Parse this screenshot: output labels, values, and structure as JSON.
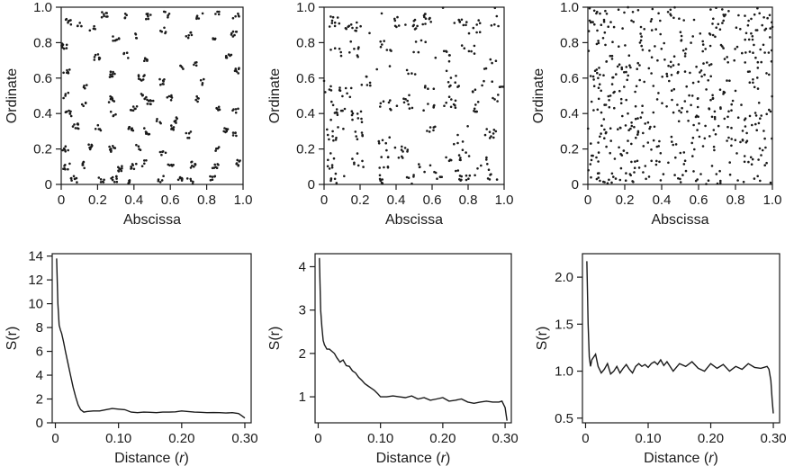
{
  "chart_data": [
    {
      "type": "scatter",
      "title": "",
      "xlabel": "Abscissa",
      "ylabel": "Ordinate",
      "xlim": [
        0,
        1
      ],
      "ylim": [
        0,
        1
      ],
      "xticks": [
        "0",
        "0.2",
        "0.4",
        "0.6",
        "0.8",
        "1.0"
      ],
      "yticks": [
        "0",
        "0.2",
        "0.4",
        "0.6",
        "0.8",
        "1.0"
      ],
      "pattern": "strongly clustered",
      "clusters": [
        [
          0.04,
          0.92
        ],
        [
          0.1,
          0.9
        ],
        [
          0.17,
          0.88
        ],
        [
          0.24,
          0.96
        ],
        [
          0.35,
          0.95
        ],
        [
          0.48,
          0.95
        ],
        [
          0.58,
          0.96
        ],
        [
          0.76,
          0.95
        ],
        [
          0.86,
          0.96
        ],
        [
          0.96,
          0.95
        ],
        [
          0.3,
          0.82
        ],
        [
          0.4,
          0.84
        ],
        [
          0.56,
          0.87
        ],
        [
          0.7,
          0.84
        ],
        [
          0.85,
          0.83
        ],
        [
          0.95,
          0.85
        ],
        [
          0.02,
          0.78
        ],
        [
          0.2,
          0.72
        ],
        [
          0.36,
          0.73
        ],
        [
          0.47,
          0.7
        ],
        [
          0.66,
          0.66
        ],
        [
          0.74,
          0.68
        ],
        [
          0.92,
          0.72
        ],
        [
          0.03,
          0.64
        ],
        [
          0.13,
          0.56
        ],
        [
          0.28,
          0.62
        ],
        [
          0.44,
          0.6
        ],
        [
          0.56,
          0.58
        ],
        [
          0.77,
          0.58
        ],
        [
          0.96,
          0.64
        ],
        [
          0.03,
          0.5
        ],
        [
          0.12,
          0.46
        ],
        [
          0.28,
          0.48
        ],
        [
          0.45,
          0.5
        ],
        [
          0.49,
          0.47
        ],
        [
          0.6,
          0.49
        ],
        [
          0.74,
          0.48
        ],
        [
          0.04,
          0.4
        ],
        [
          0.29,
          0.4
        ],
        [
          0.4,
          0.43
        ],
        [
          0.53,
          0.36
        ],
        [
          0.62,
          0.36
        ],
        [
          0.86,
          0.42
        ],
        [
          0.96,
          0.41
        ],
        [
          0.08,
          0.33
        ],
        [
          0.2,
          0.32
        ],
        [
          0.38,
          0.31
        ],
        [
          0.47,
          0.3
        ],
        [
          0.61,
          0.32
        ],
        [
          0.7,
          0.28
        ],
        [
          0.9,
          0.3
        ],
        [
          0.95,
          0.28
        ],
        [
          0.02,
          0.2
        ],
        [
          0.16,
          0.21
        ],
        [
          0.28,
          0.2
        ],
        [
          0.43,
          0.21
        ],
        [
          0.56,
          0.17
        ],
        [
          0.85,
          0.2
        ],
        [
          0.03,
          0.1
        ],
        [
          0.13,
          0.11
        ],
        [
          0.32,
          0.09
        ],
        [
          0.4,
          0.1
        ],
        [
          0.46,
          0.12
        ],
        [
          0.6,
          0.1
        ],
        [
          0.72,
          0.11
        ],
        [
          0.85,
          0.1
        ],
        [
          0.98,
          0.12
        ],
        [
          0.07,
          0.03
        ],
        [
          0.22,
          0.02
        ],
        [
          0.29,
          0.03
        ],
        [
          0.36,
          0.02
        ],
        [
          0.55,
          0.03
        ],
        [
          0.66,
          0.04
        ],
        [
          0.71,
          0.02
        ],
        [
          0.83,
          0.03
        ]
      ]
    },
    {
      "type": "scatter",
      "title": "",
      "xlabel": "Abscissa",
      "ylabel": "Ordinate",
      "xlim": [
        0,
        1
      ],
      "ylim": [
        0,
        1
      ],
      "xticks": [
        "0",
        "0.2",
        "0.4",
        "0.6",
        "0.8",
        "1.0"
      ],
      "yticks": [
        "0",
        "0.2",
        "0.4",
        "0.6",
        "0.8",
        "1.0"
      ],
      "pattern": "moderately clustered",
      "clusters": [
        [
          0.05,
          0.92
        ],
        [
          0.14,
          0.86
        ],
        [
          0.18,
          0.9
        ],
        [
          0.42,
          0.92
        ],
        [
          0.5,
          0.9
        ],
        [
          0.58,
          0.93
        ],
        [
          0.78,
          0.93
        ],
        [
          0.84,
          0.88
        ],
        [
          0.95,
          0.92
        ],
        [
          0.06,
          0.75
        ],
        [
          0.17,
          0.75
        ],
        [
          0.34,
          0.78
        ],
        [
          0.52,
          0.78
        ],
        [
          0.7,
          0.72
        ],
        [
          0.8,
          0.75
        ],
        [
          0.92,
          0.68
        ],
        [
          0.03,
          0.55
        ],
        [
          0.12,
          0.52
        ],
        [
          0.24,
          0.58
        ],
        [
          0.48,
          0.62
        ],
        [
          0.58,
          0.55
        ],
        [
          0.72,
          0.58
        ],
        [
          0.86,
          0.55
        ],
        [
          0.96,
          0.55
        ],
        [
          0.08,
          0.42
        ],
        [
          0.18,
          0.38
        ],
        [
          0.34,
          0.45
        ],
        [
          0.46,
          0.45
        ],
        [
          0.58,
          0.42
        ],
        [
          0.7,
          0.46
        ],
        [
          0.84,
          0.44
        ],
        [
          0.96,
          0.48
        ],
        [
          0.04,
          0.28
        ],
        [
          0.2,
          0.28
        ],
        [
          0.33,
          0.26
        ],
        [
          0.46,
          0.22
        ],
        [
          0.6,
          0.3
        ],
        [
          0.74,
          0.26
        ],
        [
          0.92,
          0.28
        ],
        [
          0.05,
          0.12
        ],
        [
          0.18,
          0.14
        ],
        [
          0.34,
          0.12
        ],
        [
          0.42,
          0.18
        ],
        [
          0.56,
          0.1
        ],
        [
          0.68,
          0.13
        ],
        [
          0.78,
          0.16
        ],
        [
          0.88,
          0.12
        ],
        [
          0.06,
          0.04
        ],
        [
          0.3,
          0.04
        ],
        [
          0.48,
          0.05
        ],
        [
          0.64,
          0.04
        ],
        [
          0.74,
          0.05
        ],
        [
          0.82,
          0.04
        ],
        [
          0.94,
          0.05
        ]
      ]
    },
    {
      "type": "scatter",
      "title": "",
      "xlabel": "Abscissa",
      "ylabel": "Ordinate",
      "xlim": [
        0,
        1
      ],
      "ylim": [
        0,
        1
      ],
      "xticks": [
        "0",
        "0.2",
        "0.4",
        "0.6",
        "0.8",
        "1.0"
      ],
      "yticks": [
        "0",
        "0.2",
        "0.4",
        "0.6",
        "0.8",
        "1.0"
      ],
      "pattern": "random (uniform)"
    },
    {
      "type": "line",
      "title": "",
      "xlabel": "Distance (r)",
      "ylabel": "S(r)",
      "xlim": [
        -0.005,
        0.31
      ],
      "ylim": [
        0,
        14.2
      ],
      "xticks": [
        "0",
        "0.10",
        "0.20",
        "0.30"
      ],
      "yticks": [
        "0",
        "2",
        "4",
        "6",
        "8",
        "10",
        "12",
        "14"
      ],
      "x": [
        0.002,
        0.004,
        0.006,
        0.008,
        0.01,
        0.013,
        0.016,
        0.02,
        0.024,
        0.028,
        0.032,
        0.036,
        0.04,
        0.045,
        0.05,
        0.06,
        0.07,
        0.08,
        0.09,
        0.1,
        0.11,
        0.12,
        0.13,
        0.14,
        0.15,
        0.16,
        0.17,
        0.18,
        0.19,
        0.2,
        0.21,
        0.22,
        0.23,
        0.24,
        0.25,
        0.26,
        0.27,
        0.28,
        0.29,
        0.295,
        0.3
      ],
      "y": [
        13.8,
        10.0,
        8.2,
        7.8,
        7.5,
        6.8,
        6.0,
        5.0,
        4.0,
        3.0,
        2.2,
        1.5,
        1.1,
        0.9,
        0.95,
        1.0,
        1.0,
        1.1,
        1.2,
        1.15,
        1.1,
        0.9,
        0.85,
        0.9,
        0.88,
        0.85,
        0.9,
        0.9,
        0.92,
        1.0,
        0.95,
        0.9,
        0.88,
        0.85,
        0.86,
        0.85,
        0.82,
        0.85,
        0.78,
        0.6,
        0.4
      ]
    },
    {
      "type": "line",
      "title": "",
      "xlabel": "Distance (r)",
      "ylabel": "S(r)",
      "xlim": [
        -0.005,
        0.31
      ],
      "ylim": [
        0.4,
        4.3
      ],
      "xticks": [
        "0",
        "0.10",
        "0.20",
        "0.30"
      ],
      "yticks": [
        "1",
        "2",
        "3",
        "4"
      ],
      "x": [
        0.002,
        0.004,
        0.006,
        0.008,
        0.01,
        0.014,
        0.018,
        0.022,
        0.026,
        0.03,
        0.035,
        0.04,
        0.045,
        0.05,
        0.055,
        0.06,
        0.065,
        0.07,
        0.075,
        0.08,
        0.085,
        0.09,
        0.095,
        0.1,
        0.11,
        0.12,
        0.13,
        0.14,
        0.15,
        0.16,
        0.17,
        0.18,
        0.19,
        0.2,
        0.21,
        0.22,
        0.23,
        0.24,
        0.25,
        0.26,
        0.27,
        0.28,
        0.29,
        0.295,
        0.3,
        0.303
      ],
      "y": [
        4.2,
        3.0,
        2.6,
        2.3,
        2.2,
        2.1,
        2.1,
        2.05,
        2.0,
        1.9,
        1.8,
        1.85,
        1.72,
        1.7,
        1.6,
        1.55,
        1.45,
        1.38,
        1.3,
        1.25,
        1.2,
        1.15,
        1.08,
        1.0,
        1.0,
        1.02,
        1.0,
        0.98,
        1.02,
        0.95,
        0.98,
        0.92,
        0.95,
        0.98,
        0.9,
        0.92,
        0.95,
        0.88,
        0.85,
        0.88,
        0.9,
        0.88,
        0.88,
        0.9,
        0.75,
        0.45
      ]
    },
    {
      "type": "line",
      "title": "",
      "xlabel": "Distance (r)",
      "ylabel": "S(r)",
      "xlim": [
        -0.005,
        0.31
      ],
      "ylim": [
        0.45,
        2.25
      ],
      "xticks": [
        "0",
        "0.10",
        "0.20",
        "0.30"
      ],
      "yticks": [
        "0.5",
        "1.0",
        "1.5",
        "2.0"
      ],
      "x": [
        0.002,
        0.004,
        0.006,
        0.008,
        0.01,
        0.013,
        0.016,
        0.02,
        0.025,
        0.03,
        0.035,
        0.04,
        0.045,
        0.05,
        0.055,
        0.06,
        0.065,
        0.07,
        0.075,
        0.08,
        0.085,
        0.09,
        0.095,
        0.1,
        0.105,
        0.11,
        0.115,
        0.12,
        0.125,
        0.13,
        0.14,
        0.15,
        0.16,
        0.17,
        0.18,
        0.19,
        0.2,
        0.21,
        0.22,
        0.23,
        0.24,
        0.25,
        0.26,
        0.27,
        0.28,
        0.29,
        0.293,
        0.296,
        0.298,
        0.3
      ],
      "y": [
        2.17,
        1.5,
        1.15,
        1.05,
        1.12,
        1.15,
        1.18,
        1.05,
        0.98,
        1.02,
        1.08,
        0.97,
        1.0,
        1.05,
        0.98,
        1.03,
        1.07,
        1.02,
        0.98,
        1.05,
        1.08,
        1.05,
        1.07,
        1.04,
        1.08,
        1.1,
        1.07,
        1.12,
        1.06,
        1.1,
        1.0,
        1.08,
        1.05,
        1.1,
        1.03,
        1.0,
        1.08,
        1.03,
        1.07,
        1.0,
        1.05,
        1.02,
        1.08,
        1.04,
        1.03,
        1.05,
        1.02,
        0.9,
        0.7,
        0.55
      ]
    }
  ]
}
